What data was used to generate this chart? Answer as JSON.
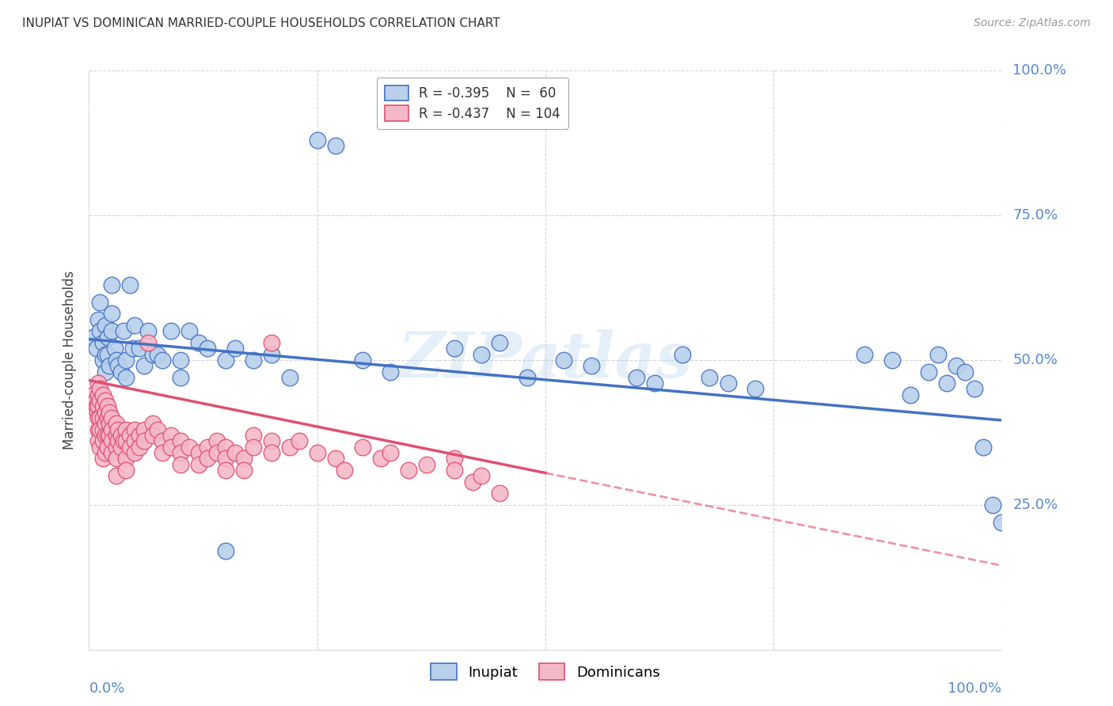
{
  "title": "INUPIAT VS DOMINICAN MARRIED-COUPLE HOUSEHOLDS CORRELATION CHART",
  "source": "Source: ZipAtlas.com",
  "ylabel": "Married-couple Households",
  "right_yticks": [
    "100.0%",
    "75.0%",
    "50.0%",
    "25.0%"
  ],
  "right_ytick_vals": [
    1.0,
    0.75,
    0.5,
    0.25
  ],
  "watermark": "ZIPatlas",
  "inupiat_color": "#b8d0eb",
  "dominicans_color": "#f5b8c8",
  "inupiat_line_color": "#4472c4",
  "dominicans_line_color": "#e05070",
  "inupiat_scatter": [
    [
      0.005,
      0.54
    ],
    [
      0.008,
      0.52
    ],
    [
      0.01,
      0.57
    ],
    [
      0.012,
      0.6
    ],
    [
      0.012,
      0.55
    ],
    [
      0.015,
      0.5
    ],
    [
      0.015,
      0.53
    ],
    [
      0.018,
      0.56
    ],
    [
      0.018,
      0.51
    ],
    [
      0.018,
      0.48
    ],
    [
      0.02,
      0.54
    ],
    [
      0.02,
      0.51
    ],
    [
      0.022,
      0.49
    ],
    [
      0.025,
      0.58
    ],
    [
      0.025,
      0.63
    ],
    [
      0.025,
      0.55
    ],
    [
      0.028,
      0.52
    ],
    [
      0.03,
      0.5
    ],
    [
      0.032,
      0.49
    ],
    [
      0.035,
      0.48
    ],
    [
      0.038,
      0.55
    ],
    [
      0.04,
      0.5
    ],
    [
      0.04,
      0.47
    ],
    [
      0.045,
      0.63
    ],
    [
      0.048,
      0.52
    ],
    [
      0.05,
      0.56
    ],
    [
      0.055,
      0.52
    ],
    [
      0.06,
      0.49
    ],
    [
      0.065,
      0.55
    ],
    [
      0.07,
      0.51
    ],
    [
      0.075,
      0.51
    ],
    [
      0.08,
      0.5
    ],
    [
      0.09,
      0.55
    ],
    [
      0.1,
      0.5
    ],
    [
      0.1,
      0.47
    ],
    [
      0.11,
      0.55
    ],
    [
      0.12,
      0.53
    ],
    [
      0.13,
      0.52
    ],
    [
      0.15,
      0.5
    ],
    [
      0.15,
      0.17
    ],
    [
      0.16,
      0.52
    ],
    [
      0.18,
      0.5
    ],
    [
      0.2,
      0.51
    ],
    [
      0.22,
      0.47
    ],
    [
      0.25,
      0.88
    ],
    [
      0.27,
      0.87
    ],
    [
      0.3,
      0.5
    ],
    [
      0.33,
      0.48
    ],
    [
      0.4,
      0.52
    ],
    [
      0.43,
      0.51
    ],
    [
      0.45,
      0.53
    ],
    [
      0.48,
      0.47
    ],
    [
      0.52,
      0.5
    ],
    [
      0.55,
      0.49
    ],
    [
      0.6,
      0.47
    ],
    [
      0.62,
      0.46
    ],
    [
      0.65,
      0.51
    ],
    [
      0.68,
      0.47
    ],
    [
      0.7,
      0.46
    ],
    [
      0.73,
      0.45
    ],
    [
      0.85,
      0.51
    ],
    [
      0.88,
      0.5
    ],
    [
      0.9,
      0.44
    ],
    [
      0.92,
      0.48
    ],
    [
      0.93,
      0.51
    ],
    [
      0.94,
      0.46
    ],
    [
      0.95,
      0.49
    ],
    [
      0.96,
      0.48
    ],
    [
      0.97,
      0.45
    ],
    [
      0.98,
      0.35
    ],
    [
      0.99,
      0.25
    ],
    [
      1.0,
      0.22
    ]
  ],
  "dominicans_scatter": [
    [
      0.005,
      0.44
    ],
    [
      0.007,
      0.43
    ],
    [
      0.008,
      0.42
    ],
    [
      0.009,
      0.41
    ],
    [
      0.01,
      0.46
    ],
    [
      0.01,
      0.44
    ],
    [
      0.01,
      0.42
    ],
    [
      0.01,
      0.4
    ],
    [
      0.01,
      0.38
    ],
    [
      0.01,
      0.36
    ],
    [
      0.012,
      0.45
    ],
    [
      0.012,
      0.43
    ],
    [
      0.012,
      0.4
    ],
    [
      0.012,
      0.38
    ],
    [
      0.012,
      0.35
    ],
    [
      0.015,
      0.44
    ],
    [
      0.015,
      0.42
    ],
    [
      0.015,
      0.4
    ],
    [
      0.015,
      0.38
    ],
    [
      0.015,
      0.36
    ],
    [
      0.015,
      0.33
    ],
    [
      0.018,
      0.43
    ],
    [
      0.018,
      0.41
    ],
    [
      0.018,
      0.39
    ],
    [
      0.018,
      0.37
    ],
    [
      0.018,
      0.34
    ],
    [
      0.02,
      0.42
    ],
    [
      0.02,
      0.4
    ],
    [
      0.02,
      0.37
    ],
    [
      0.02,
      0.35
    ],
    [
      0.022,
      0.41
    ],
    [
      0.022,
      0.39
    ],
    [
      0.022,
      0.37
    ],
    [
      0.025,
      0.4
    ],
    [
      0.025,
      0.38
    ],
    [
      0.025,
      0.36
    ],
    [
      0.025,
      0.34
    ],
    [
      0.03,
      0.39
    ],
    [
      0.03,
      0.37
    ],
    [
      0.03,
      0.35
    ],
    [
      0.03,
      0.33
    ],
    [
      0.03,
      0.3
    ],
    [
      0.032,
      0.38
    ],
    [
      0.032,
      0.36
    ],
    [
      0.035,
      0.37
    ],
    [
      0.035,
      0.35
    ],
    [
      0.038,
      0.36
    ],
    [
      0.04,
      0.38
    ],
    [
      0.04,
      0.36
    ],
    [
      0.04,
      0.33
    ],
    [
      0.04,
      0.31
    ],
    [
      0.045,
      0.37
    ],
    [
      0.045,
      0.35
    ],
    [
      0.05,
      0.38
    ],
    [
      0.05,
      0.36
    ],
    [
      0.05,
      0.34
    ],
    [
      0.055,
      0.37
    ],
    [
      0.055,
      0.35
    ],
    [
      0.06,
      0.38
    ],
    [
      0.06,
      0.36
    ],
    [
      0.065,
      0.53
    ],
    [
      0.07,
      0.39
    ],
    [
      0.07,
      0.37
    ],
    [
      0.075,
      0.38
    ],
    [
      0.08,
      0.36
    ],
    [
      0.08,
      0.34
    ],
    [
      0.09,
      0.37
    ],
    [
      0.09,
      0.35
    ],
    [
      0.1,
      0.36
    ],
    [
      0.1,
      0.34
    ],
    [
      0.1,
      0.32
    ],
    [
      0.11,
      0.35
    ],
    [
      0.12,
      0.34
    ],
    [
      0.12,
      0.32
    ],
    [
      0.13,
      0.35
    ],
    [
      0.13,
      0.33
    ],
    [
      0.14,
      0.36
    ],
    [
      0.14,
      0.34
    ],
    [
      0.15,
      0.35
    ],
    [
      0.15,
      0.33
    ],
    [
      0.15,
      0.31
    ],
    [
      0.16,
      0.34
    ],
    [
      0.17,
      0.33
    ],
    [
      0.17,
      0.31
    ],
    [
      0.18,
      0.37
    ],
    [
      0.18,
      0.35
    ],
    [
      0.2,
      0.53
    ],
    [
      0.2,
      0.36
    ],
    [
      0.2,
      0.34
    ],
    [
      0.22,
      0.35
    ],
    [
      0.23,
      0.36
    ],
    [
      0.25,
      0.34
    ],
    [
      0.27,
      0.33
    ],
    [
      0.28,
      0.31
    ],
    [
      0.3,
      0.35
    ],
    [
      0.32,
      0.33
    ],
    [
      0.33,
      0.34
    ],
    [
      0.35,
      0.31
    ],
    [
      0.37,
      0.32
    ],
    [
      0.4,
      0.33
    ],
    [
      0.4,
      0.31
    ],
    [
      0.42,
      0.29
    ],
    [
      0.43,
      0.3
    ],
    [
      0.45,
      0.27
    ]
  ],
  "xlim": [
    0.0,
    1.0
  ],
  "ylim": [
    0.0,
    1.0
  ],
  "background_color": "#ffffff",
  "grid_color": "#cccccc",
  "axis_label_color": "#5588cc",
  "inupiat_trend": [
    0.0,
    0.536,
    1.0,
    0.396
  ],
  "dominicans_trend_solid": [
    0.0,
    0.465,
    0.5,
    0.305
  ],
  "dominicans_trend_dashed": [
    0.5,
    0.305,
    1.0,
    0.145
  ]
}
